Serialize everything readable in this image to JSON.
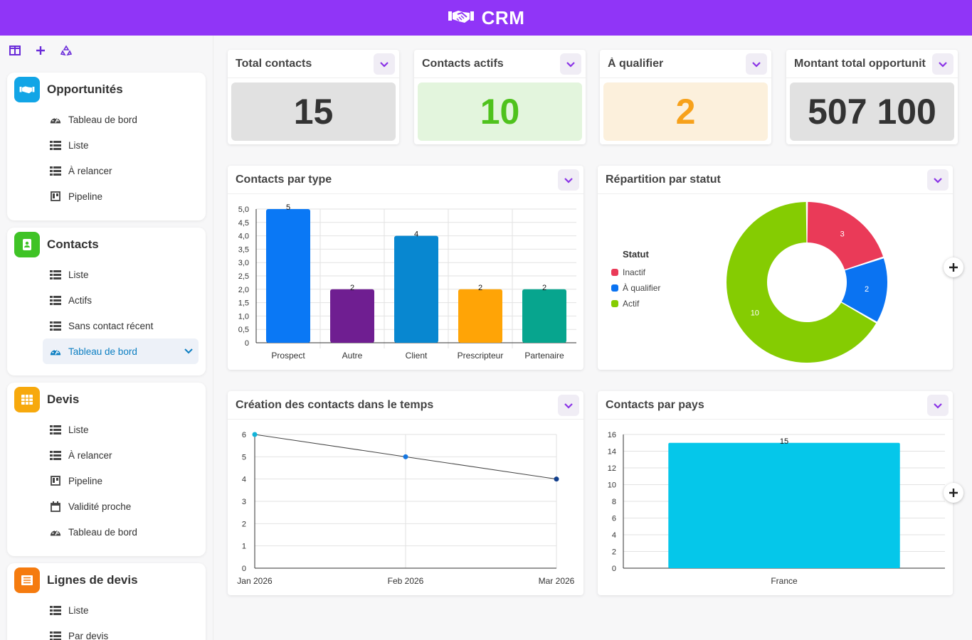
{
  "header": {
    "title": "CRM"
  },
  "sidebar": {
    "tools": [
      "panel-layout-icon",
      "plus-icon",
      "recycle-icon"
    ],
    "modules": [
      {
        "title": "Opportunités",
        "color": "#12a5e6",
        "icon": "handshake-icon",
        "items": [
          {
            "label": "Tableau de bord",
            "icon": "dashboard-icon"
          },
          {
            "label": "Liste",
            "icon": "list-icon"
          },
          {
            "label": "À relancer",
            "icon": "list-icon"
          },
          {
            "label": "Pipeline",
            "icon": "kanban-icon"
          }
        ]
      },
      {
        "title": "Contacts",
        "color": "#3fc326",
        "icon": "address-book-icon",
        "items": [
          {
            "label": "Liste",
            "icon": "list-icon"
          },
          {
            "label": "Actifs",
            "icon": "list-icon"
          },
          {
            "label": "Sans contact récent",
            "icon": "list-icon"
          },
          {
            "label": "Tableau de bord",
            "icon": "dashboard-icon",
            "active": true
          }
        ]
      },
      {
        "title": "Devis",
        "color": "#f7a90d",
        "icon": "grid-icon",
        "items": [
          {
            "label": "Liste",
            "icon": "list-icon"
          },
          {
            "label": "À relancer",
            "icon": "list-icon"
          },
          {
            "label": "Pipeline",
            "icon": "kanban-icon"
          },
          {
            "label": "Validité proche",
            "icon": "calendar-icon"
          },
          {
            "label": "Tableau de bord",
            "icon": "dashboard-icon"
          }
        ]
      },
      {
        "title": "Lignes de devis",
        "color": "#f57b0f",
        "icon": "lines-icon",
        "items": [
          {
            "label": "Liste",
            "icon": "list-icon"
          },
          {
            "label": "Par devis",
            "icon": "list-icon"
          }
        ]
      }
    ]
  },
  "kpis": [
    {
      "title": "Total contacts",
      "value": "15",
      "bg": "#e1e1e1",
      "fg": "#333333"
    },
    {
      "title": "Contacts actifs",
      "value": "10",
      "bg": "#e3f5dd",
      "fg": "#4fc21d"
    },
    {
      "title": "À qualifier",
      "value": "2",
      "bg": "#fcf0dc",
      "fg": "#f7a11a"
    },
    {
      "title": "Montant total opportunités",
      "value": "507 100",
      "bg": "#e1e1e1",
      "fg": "#333333"
    }
  ],
  "charts": {
    "by_type": {
      "title": "Contacts par type"
    },
    "by_status": {
      "title": "Répartition par statut"
    },
    "timeline": {
      "title": "Création des contacts dans le temps"
    },
    "by_country": {
      "title": "Contacts par pays"
    }
  },
  "chart_data": [
    {
      "type": "bar",
      "title": "Contacts par type",
      "categories": [
        "Prospect",
        "Autre",
        "Client",
        "Prescripteur",
        "Partenaire"
      ],
      "values": [
        5,
        2,
        4,
        2,
        2
      ],
      "colors": [
        "#0a78f5",
        "#6f1e91",
        "#0887d0",
        "#ffa406",
        "#07a58e"
      ],
      "yticks": [
        "0",
        "0,5",
        "1,0",
        "1,5",
        "2,0",
        "2,5",
        "3,0",
        "3,5",
        "4,0",
        "4,5",
        "5,0"
      ],
      "ylim": [
        0,
        5
      ],
      "grid": true
    },
    {
      "type": "pie",
      "title": "Répartition par statut",
      "legend_title": "Statut",
      "legend_position": "left",
      "slices": [
        {
          "label": "Inactif",
          "value": 3,
          "color": "#ea3a58"
        },
        {
          "label": "À qualifier",
          "value": 2,
          "color": "#0a73f2"
        },
        {
          "label": "Actif",
          "value": 10,
          "color": "#85cc02"
        }
      ]
    },
    {
      "type": "line",
      "title": "Création des contacts dans le temps",
      "x": [
        "Jan 2026",
        "Feb 2026",
        "Mar 2026"
      ],
      "values": [
        6,
        5,
        4
      ],
      "ylim": [
        0,
        6
      ],
      "yticks": [
        "0",
        "1",
        "2",
        "3",
        "4",
        "5",
        "6"
      ],
      "point_colors": [
        "#13b3d8",
        "#1576e0",
        "#123f8c"
      ],
      "grid": true
    },
    {
      "type": "bar",
      "title": "Contacts par pays",
      "categories": [
        "France"
      ],
      "values": [
        15
      ],
      "colors": [
        "#05c7ea"
      ],
      "ylim": [
        0,
        16
      ],
      "yticks": [
        "0",
        "2",
        "4",
        "6",
        "8",
        "10",
        "12",
        "14",
        "16"
      ],
      "grid": true
    }
  ]
}
